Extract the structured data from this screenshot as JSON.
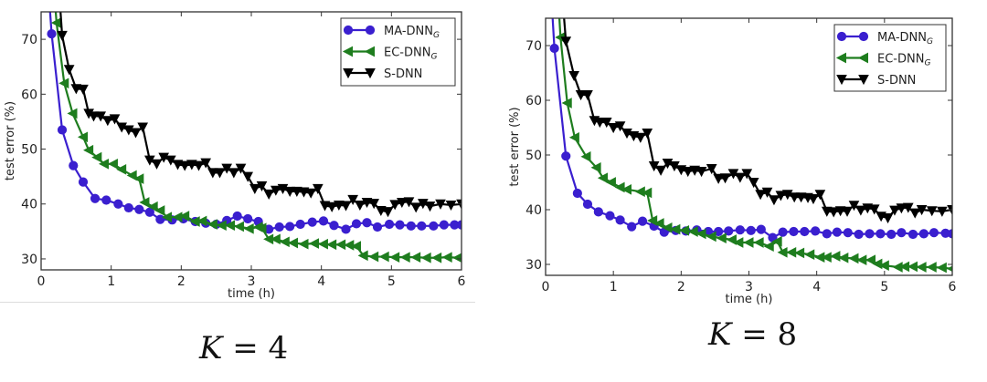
{
  "chart_data": [
    {
      "type": "line",
      "caption": "K = 4",
      "caption_var": "K",
      "caption_eq": "= 4",
      "xlabel": "time (h)",
      "ylabel": "test error (%)",
      "xlim": [
        0,
        6
      ],
      "ylim": [
        28,
        75
      ],
      "xticks": [
        0,
        1,
        2,
        3,
        4,
        5,
        6
      ],
      "yticks": [
        30,
        40,
        50,
        60,
        70
      ],
      "legend_position": "top-right",
      "series": [
        {
          "name": "MA-DNN",
          "subscript": "G",
          "color": "#3a1fcf",
          "marker": "circle",
          "x": [
            0.1,
            0.15,
            0.3,
            0.46,
            0.6,
            0.77,
            0.93,
            1.1,
            1.25,
            1.4,
            1.55,
            1.7,
            1.87,
            2.03,
            2.2,
            2.35,
            2.5,
            2.65,
            2.8,
            2.95,
            3.1,
            3.25,
            3.4,
            3.55,
            3.7,
            3.87,
            4.03,
            4.18,
            4.35,
            4.5,
            4.65,
            4.8,
            4.97,
            5.12,
            5.28,
            5.43,
            5.6,
            5.75,
            5.9,
            6.0
          ],
          "y": [
            80,
            71,
            53.5,
            47,
            44,
            41,
            40.7,
            40,
            39.3,
            39,
            38.5,
            37.2,
            37.1,
            37.3,
            36.8,
            36.5,
            36.3,
            37,
            37.8,
            37.3,
            36.8,
            35.4,
            35.8,
            35.9,
            36.3,
            36.7,
            36.9,
            36.1,
            35.4,
            36.4,
            36.6,
            35.8,
            36.3,
            36.2,
            36,
            36,
            36,
            36.2,
            36.2,
            36.2
          ]
        },
        {
          "name": "EC-DNN",
          "subscript": "G",
          "color": "#1e7d1e",
          "marker": "triangle-left",
          "x": [
            0.18,
            0.22,
            0.33,
            0.45,
            0.6,
            0.68,
            0.8,
            0.9,
            1.03,
            1.15,
            1.3,
            1.4,
            1.48,
            1.6,
            1.7,
            1.8,
            1.95,
            2.05,
            2.2,
            2.3,
            2.45,
            2.58,
            2.7,
            2.83,
            2.97,
            3.1,
            3.15,
            3.25,
            3.35,
            3.48,
            3.6,
            3.75,
            3.9,
            4.03,
            4.15,
            4.28,
            4.4,
            4.5,
            4.6,
            4.75,
            4.9,
            5.05,
            5.2,
            5.35,
            5.5,
            5.65,
            5.8,
            5.95,
            6.0
          ],
          "y": [
            80,
            73,
            62,
            56.5,
            52.2,
            49.8,
            48.5,
            47.3,
            47.3,
            46.3,
            45.2,
            44.6,
            40.3,
            39.5,
            38.8,
            37.6,
            37.6,
            37.8,
            36.8,
            36.9,
            36.3,
            36.1,
            36.1,
            35.9,
            35.5,
            35.8,
            35.6,
            33.6,
            33.6,
            33.1,
            32.9,
            32.7,
            32.8,
            32.7,
            32.6,
            32.6,
            32.5,
            32.3,
            30.6,
            30.4,
            30.4,
            30.3,
            30.3,
            30.3,
            30.2,
            30.2,
            30.3,
            30.2,
            30.1
          ]
        },
        {
          "name": "S-DNN",
          "subscript": "",
          "color": "#000000",
          "marker": "triangle-down",
          "x": [
            0.25,
            0.3,
            0.4,
            0.5,
            0.6,
            0.68,
            0.75,
            0.85,
            0.95,
            1.05,
            1.15,
            1.25,
            1.35,
            1.45,
            1.55,
            1.65,
            1.75,
            1.85,
            1.95,
            2.05,
            2.15,
            2.25,
            2.35,
            2.45,
            2.55,
            2.65,
            2.75,
            2.85,
            2.95,
            3.05,
            3.15,
            3.25,
            3.35,
            3.45,
            3.55,
            3.65,
            3.75,
            3.85,
            3.95,
            4.05,
            4.15,
            4.25,
            4.35,
            4.45,
            4.55,
            4.65,
            4.75,
            4.85,
            4.95,
            5.05,
            5.15,
            5.25,
            5.35,
            5.45,
            5.55,
            5.7,
            5.85,
            6.0
          ],
          "y": [
            80,
            70.7,
            64.5,
            61,
            60.9,
            56.5,
            56,
            56,
            55.2,
            55.5,
            54,
            53.5,
            53,
            54,
            48,
            47.3,
            48.5,
            48,
            47.2,
            47,
            47.2,
            47,
            47.5,
            45.7,
            45.7,
            46.5,
            45.7,
            46.5,
            45,
            42.8,
            43.3,
            41.8,
            42.5,
            42.8,
            42.3,
            42.3,
            42.2,
            42,
            42.8,
            39.7,
            39.5,
            39.8,
            39.7,
            40.8,
            39.8,
            40.3,
            40.1,
            38.8,
            38.6,
            39.9,
            40.3,
            40.4,
            39.4,
            40.1,
            39.6,
            40,
            39.8,
            40
          ]
        }
      ]
    },
    {
      "type": "line",
      "caption": "K = 8",
      "caption_var": "K",
      "caption_eq": "= 8",
      "xlabel": "time (h)",
      "ylabel": "test error (%)",
      "xlim": [
        0,
        6
      ],
      "ylim": [
        28,
        75
      ],
      "xticks": [
        0,
        1,
        2,
        3,
        4,
        5,
        6
      ],
      "yticks": [
        30,
        40,
        50,
        60,
        70
      ],
      "legend_position": "top-right",
      "series": [
        {
          "name": "MA-DNN",
          "subscript": "G",
          "color": "#3a1fcf",
          "marker": "circle",
          "x": [
            0.08,
            0.13,
            0.3,
            0.47,
            0.62,
            0.78,
            0.95,
            1.1,
            1.27,
            1.43,
            1.6,
            1.75,
            1.92,
            2.07,
            2.23,
            2.4,
            2.55,
            2.7,
            2.87,
            3.03,
            3.18,
            3.35,
            3.5,
            3.66,
            3.82,
            3.98,
            4.15,
            4.3,
            4.46,
            4.62,
            4.78,
            4.94,
            5.1,
            5.25,
            5.42,
            5.58,
            5.73,
            5.9,
            6.0
          ],
          "y": [
            80,
            69.5,
            49.8,
            43,
            41,
            39.6,
            38.9,
            38.1,
            36.9,
            37.9,
            37,
            35.9,
            36.2,
            36.1,
            36.3,
            36,
            36,
            36.1,
            36.3,
            36.2,
            36.4,
            34.9,
            35.9,
            36,
            36,
            36.1,
            35.6,
            35.9,
            35.8,
            35.5,
            35.6,
            35.6,
            35.5,
            35.8,
            35.5,
            35.6,
            35.8,
            35.7,
            35.6
          ]
        },
        {
          "name": "EC-DNN",
          "subscript": "G",
          "color": "#1e7d1e",
          "marker": "triangle-left",
          "x": [
            0.18,
            0.22,
            0.32,
            0.43,
            0.6,
            0.75,
            0.85,
            0.97,
            1.1,
            1.2,
            1.4,
            1.5,
            1.58,
            1.68,
            1.8,
            1.92,
            2.05,
            2.18,
            2.3,
            2.45,
            2.6,
            2.75,
            2.85,
            3.0,
            3.15,
            3.3,
            3.42,
            3.5,
            3.63,
            3.75,
            3.9,
            4.05,
            4.15,
            4.28,
            4.4,
            4.55,
            4.67,
            4.8,
            4.9,
            5.0,
            5.2,
            5.3,
            5.42,
            5.55,
            5.7,
            5.85,
            6.0
          ],
          "y": [
            80,
            71.5,
            59.5,
            53.2,
            49.7,
            47.7,
            45.8,
            45,
            44.1,
            43.7,
            43.3,
            43.1,
            38,
            37.5,
            36.7,
            36.4,
            36.2,
            36,
            35.6,
            35.1,
            34.8,
            34.5,
            34,
            34,
            34,
            33.3,
            34.2,
            32.2,
            32.2,
            32.1,
            31.8,
            31.3,
            31.3,
            31.5,
            31.2,
            31.1,
            30.8,
            30.8,
            30.1,
            29.8,
            29.5,
            29.6,
            29.6,
            29.5,
            29.5,
            29.4,
            29.2
          ]
        },
        {
          "name": "S-DNN",
          "subscript": "",
          "color": "#000000",
          "marker": "triangle-down",
          "x": [
            0.24,
            0.3,
            0.42,
            0.52,
            0.62,
            0.72,
            0.8,
            0.9,
            1.0,
            1.1,
            1.2,
            1.3,
            1.4,
            1.5,
            1.6,
            1.7,
            1.8,
            1.9,
            2.0,
            2.1,
            2.2,
            2.3,
            2.45,
            2.55,
            2.65,
            2.77,
            2.87,
            2.97,
            3.07,
            3.17,
            3.27,
            3.37,
            3.47,
            3.57,
            3.67,
            3.77,
            3.87,
            3.95,
            4.05,
            4.15,
            4.25,
            4.35,
            4.45,
            4.55,
            4.65,
            4.75,
            4.85,
            4.95,
            5.05,
            5.15,
            5.25,
            5.35,
            5.45,
            5.55,
            5.7,
            5.85,
            6.0
          ],
          "y": [
            80,
            70.8,
            64.5,
            61,
            61,
            56.3,
            56,
            56,
            55,
            55.3,
            54,
            53.5,
            53.2,
            54,
            48,
            47.2,
            48.5,
            48,
            47.3,
            47,
            47.2,
            47,
            47.5,
            45.7,
            45.8,
            46.6,
            45.9,
            46.6,
            45,
            42.8,
            43.2,
            41.8,
            42.6,
            42.8,
            42.3,
            42.3,
            42.2,
            42,
            42.8,
            39.7,
            39.6,
            39.8,
            39.7,
            40.8,
            39.9,
            40.3,
            40.1,
            38.8,
            38.5,
            39.9,
            40.3,
            40.4,
            39.4,
            40,
            39.8,
            39.7,
            40
          ]
        }
      ]
    }
  ]
}
